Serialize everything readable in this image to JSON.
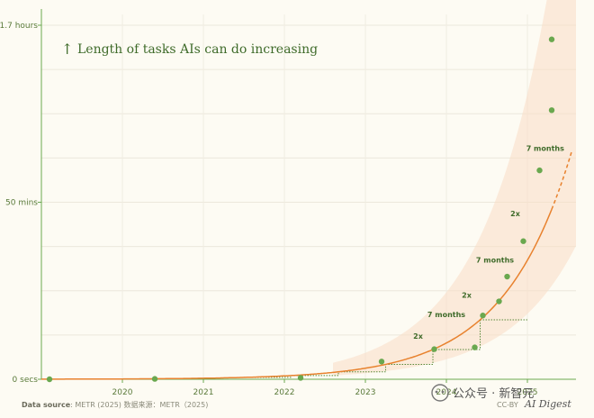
{
  "chart_data": {
    "type": "scatter",
    "title": "Length of tasks AIs can do increasing",
    "title_icon": "up-arrow-icon",
    "y_ticks": [
      {
        "label": "0 secs",
        "value": 0
      },
      {
        "label": "50 mins",
        "value": 50
      },
      {
        "label": "1.7 hours",
        "value": 100
      }
    ],
    "x_ticks": [
      "2020",
      "2021",
      "2022",
      "2023",
      "2024",
      "2025"
    ],
    "ylim": [
      0,
      100
    ],
    "xlim": [
      2019.0,
      2025.6
    ],
    "grid": true,
    "points": [
      {
        "x": 2019.1,
        "y": 0.0
      },
      {
        "x": 2020.4,
        "y": 0.1
      },
      {
        "x": 2022.2,
        "y": 0.4
      },
      {
        "x": 2023.2,
        "y": 5.0
      },
      {
        "x": 2023.85,
        "y": 8.5
      },
      {
        "x": 2024.35,
        "y": 9.0
      },
      {
        "x": 2024.45,
        "y": 18.0
      },
      {
        "x": 2024.65,
        "y": 22.0
      },
      {
        "x": 2024.75,
        "y": 29.0
      },
      {
        "x": 2024.95,
        "y": 39.0
      },
      {
        "x": 2025.15,
        "y": 59.0
      },
      {
        "x": 2025.3,
        "y": 76.0
      },
      {
        "x": 2025.3,
        "y": 96.0
      }
    ],
    "trend": {
      "base_year": 2025.3,
      "base_value": 48.0,
      "doubling_months": 7
    },
    "annotations": [
      {
        "text": "2x",
        "x": 2023.65,
        "y": 11.5
      },
      {
        "text": "7 months",
        "x": 2024.0,
        "y": 17.5
      },
      {
        "text": "2x",
        "x": 2024.25,
        "y": 23.0
      },
      {
        "text": "7 months",
        "x": 2024.6,
        "y": 33.0
      },
      {
        "text": "2x",
        "x": 2024.85,
        "y": 46.0
      },
      {
        "text": "7 months",
        "x": 2025.22,
        "y": 64.5
      }
    ],
    "colors": {
      "points": "#6aa84f",
      "trend": "#e8822e",
      "band": "#f9dcc5",
      "axis": "#6aa84f",
      "steps": "#5a8a3a"
    }
  },
  "footer": {
    "source_label": "Data source",
    "source_text": ": METR (2025)  数据来源：METR（2025)",
    "license": "CC-BY",
    "brand": "AI Digest",
    "watermark": "公众号 · 新智元"
  }
}
